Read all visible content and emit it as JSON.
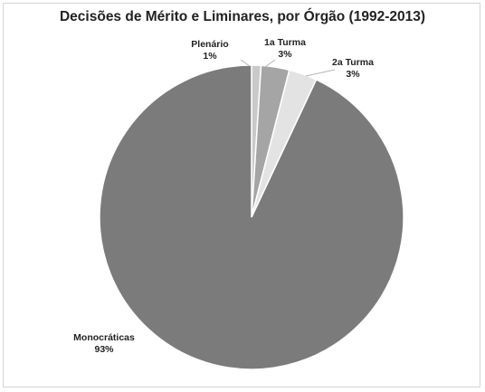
{
  "chart_data": {
    "type": "pie",
    "title": "Decisões de Mérito e Liminares, por Órgão (1992-2013)",
    "slices": [
      {
        "name": "Plenário",
        "label": "1%",
        "value": 1,
        "color": "#c9c9c9"
      },
      {
        "name": "1a Turma",
        "label": "3%",
        "value": 3,
        "color": "#a5a5a5"
      },
      {
        "name": "2a Turma",
        "label": "3%",
        "value": 3,
        "color": "#e3e3e3"
      },
      {
        "name": "Monocráticas",
        "label": "93%",
        "value": 93,
        "color": "#7b7b7c"
      }
    ],
    "legend": "none",
    "data_labels": "outside"
  }
}
